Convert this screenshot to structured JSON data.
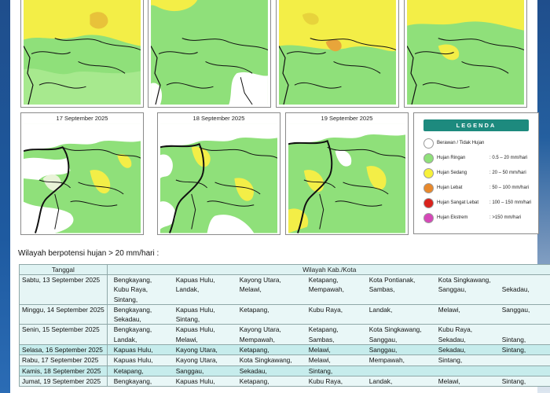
{
  "maps_top": [
    {
      "title": ""
    },
    {
      "title": ""
    },
    {
      "title": ""
    },
    {
      "title": ""
    }
  ],
  "maps_bottom": [
    {
      "title": "17 September 2025"
    },
    {
      "title": "18 September 2025"
    },
    {
      "title": "19 September 2025"
    }
  ],
  "legend": {
    "title": "LEGENDA",
    "items": [
      {
        "name": "Berawan / Tidak Hujan",
        "range": "",
        "color": "#ffffff"
      },
      {
        "name": "Hujan Ringan",
        "range": ": 0.5 – 20 mm/hari",
        "color": "#8fe07a"
      },
      {
        "name": "Hujan Sedang",
        "range": ": 20 – 50 mm/hari",
        "color": "#f7f13a"
      },
      {
        "name": "Hujan Lebat",
        "range": ": 50 – 100 mm/hari",
        "color": "#e8892c"
      },
      {
        "name": "Hujan Sangat Lebat",
        "range": ": 100 – 150 mm/hari",
        "color": "#d9221c"
      },
      {
        "name": "Hujan Ekstrem",
        "range": ": >150 mm/hari",
        "color": "#d548b8"
      }
    ]
  },
  "caption": "Wilayah berpotensi hujan > 20 mm/hari :",
  "table": {
    "headers": [
      "Tanggal",
      "Wilayah Kab./Kota"
    ],
    "rows": [
      {
        "date": "Sabtu, 13 September 2025",
        "areas": [
          "Bengkayang,",
          "Kapuas Hulu,",
          "Kayong Utara,",
          "Ketapang,",
          "Kota Pontianak,",
          "Kota Singkawang,",
          "",
          "Kubu Raya,",
          "Landak,",
          "Melawi,",
          "Mempawah,",
          "Sambas,",
          "Sanggau,",
          "Sekadau,",
          "Sintang,"
        ]
      },
      {
        "date": "Minggu, 14 September 2025",
        "areas": [
          "Bengkayang,",
          "Kapuas Hulu,",
          "Ketapang,",
          "Kubu Raya,",
          "Landak,",
          "Melawi,",
          "Sanggau,",
          "Sekadau,",
          "Sintang,"
        ]
      },
      {
        "date": "Senin, 15 September 2025",
        "areas": [
          "Bengkayang,",
          "Kapuas Hulu,",
          "Kayong Utara,",
          "Ketapang,",
          "Kota Singkawang,",
          "Kubu Raya,",
          "",
          "Landak,",
          "Melawi,",
          "Mempawah,",
          "Sambas,",
          "Sanggau,",
          "Sekadau,",
          "Sintang,"
        ]
      },
      {
        "date": "Selasa, 16 September 2025",
        "areas": [
          "Kapuas Hulu,",
          "Kayong Utara,",
          "Ketapang,",
          "Melawi,",
          "Sanggau,",
          "Sekadau,",
          "Sintang,"
        ]
      },
      {
        "date": "Rabu, 17 September 2025",
        "areas": [
          "Kapuas Hulu,",
          "Kayong Utara,",
          "Kota Singkawang,",
          "Melawi,",
          "Mempawah,",
          "Sintang,"
        ]
      },
      {
        "date": "Kamis, 18 September 2025",
        "areas": [
          "Ketapang,",
          "Sanggau,",
          "Sekadau,",
          "Sintang,"
        ]
      },
      {
        "date": "Jumat, 19 September 2025",
        "areas": [
          "Bengkayang,",
          "Kapuas Hulu,",
          "Ketapang,",
          "Kubu Raya,",
          "Landak,",
          "Melawi,",
          "Sintang,"
        ]
      }
    ]
  }
}
